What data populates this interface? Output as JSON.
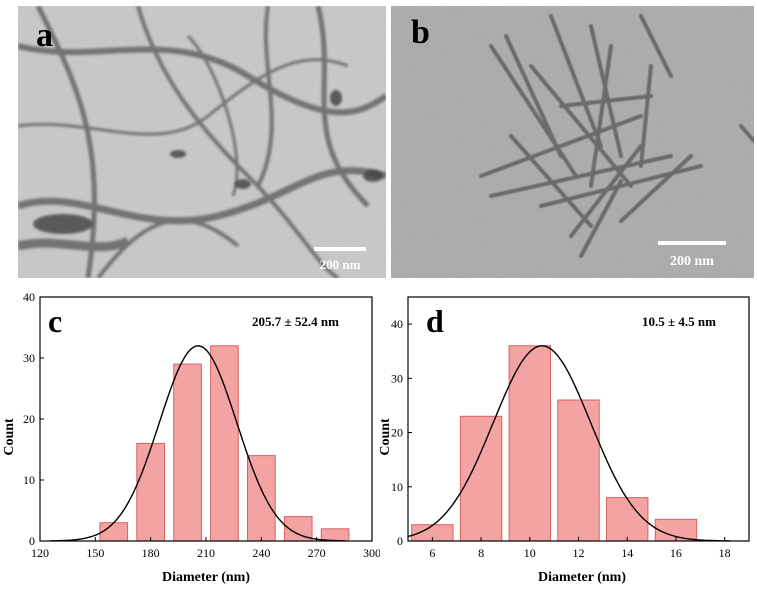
{
  "panels": {
    "a": {
      "label": "a",
      "scale_bar": "200 nm"
    },
    "b": {
      "label": "b",
      "scale_bar": "200 nm"
    }
  },
  "chart_data": [
    {
      "type": "bar",
      "panel_label": "c",
      "annotation": "205.7 ± 52.4 nm",
      "xlabel": "Diameter (nm)",
      "ylabel": "Count",
      "xlim": [
        120,
        300
      ],
      "ylim": [
        0,
        40
      ],
      "xticks": [
        120,
        150,
        180,
        210,
        240,
        270,
        300
      ],
      "yticks": [
        0,
        10,
        20,
        30,
        40
      ],
      "bin_centers": [
        160,
        180,
        200,
        220,
        240,
        260,
        280
      ],
      "bin_width": 15,
      "values": [
        3,
        16,
        29,
        32,
        14,
        4,
        2
      ],
      "fit": {
        "type": "gaussian",
        "peak": 32,
        "center": 205.7,
        "sigma": 21
      },
      "bar_color": "#f4a3a3",
      "bar_edge": "#d86060"
    },
    {
      "type": "bar",
      "panel_label": "d",
      "annotation": "10.5 ± 4.5 nm",
      "xlabel": "Diameter (nm)",
      "ylabel": "Count",
      "xlim": [
        5,
        19
      ],
      "ylim": [
        0,
        45
      ],
      "xticks": [
        6,
        8,
        10,
        12,
        14,
        16,
        18
      ],
      "yticks": [
        0,
        10,
        20,
        30,
        40
      ],
      "bin_centers": [
        6,
        8,
        10,
        12,
        14,
        16
      ],
      "bin_width": 1.7,
      "values": [
        3,
        23,
        36,
        26,
        8,
        4
      ],
      "fit": {
        "type": "gaussian",
        "peak": 36,
        "center": 10.5,
        "sigma": 2.0
      },
      "bar_color": "#f4a3a3",
      "bar_edge": "#d86060"
    }
  ]
}
